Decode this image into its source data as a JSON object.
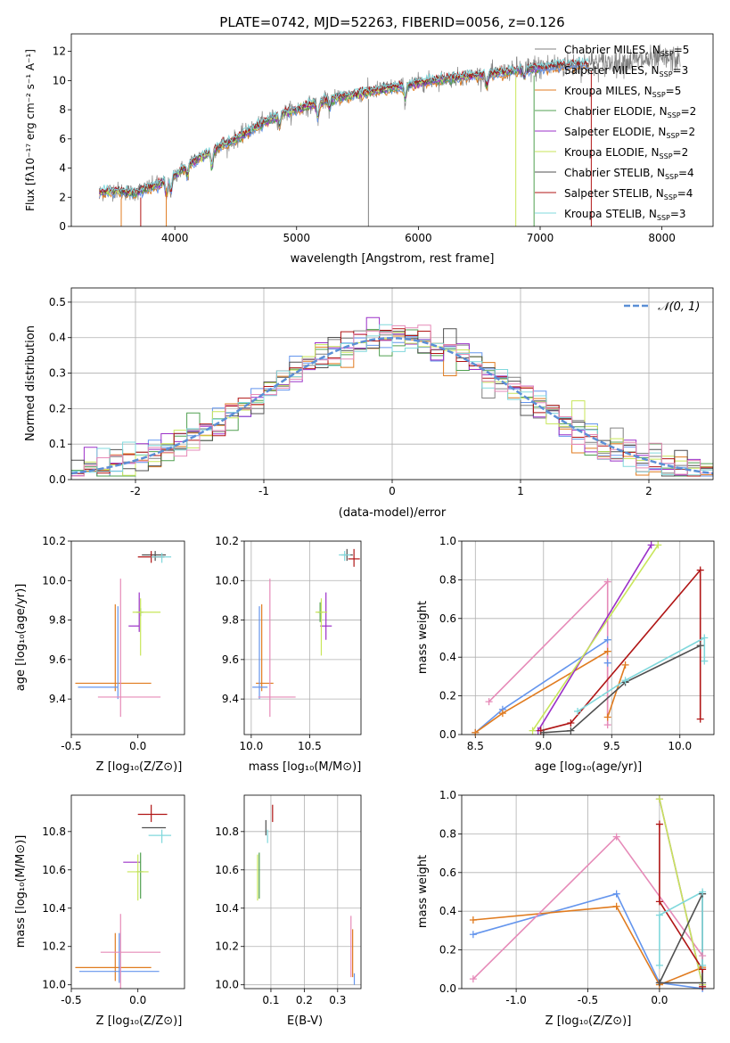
{
  "title": "PLATE=0742, MJD=52263, FIBERID=0056, z=0.126",
  "colors": {
    "chab_miles": "#808080",
    "salp_miles": "#6495ed",
    "krou_miles": "#e07b1f",
    "chab_elodie": "#50a050",
    "salp_elodie": "#9b30c8",
    "krou_elodie": "#c8e65a",
    "chab_stelib": "#505050",
    "salp_stelib": "#b01515",
    "krou_stelib": "#80d8dc",
    "pink": "#e68ab8",
    "gauss": "#5b8fd6",
    "grid": "#b0b0b0"
  },
  "legend_entries": {
    "e0": {
      "pre": "Chabrier MILES, N",
      "sub": "SSP",
      "post": "=5"
    },
    "e1": {
      "pre": "Salpeter MILES, N",
      "sub": "SSP",
      "post": "=3"
    },
    "e2": {
      "pre": "Kroupa MILES, N",
      "sub": "SSP",
      "post": "=5"
    },
    "e3": {
      "pre": "Chabrier ELODIE, N",
      "sub": "SSP",
      "post": "=2"
    },
    "e4": {
      "pre": "Salpeter ELODIE, N",
      "sub": "SSP",
      "post": "=2"
    },
    "e5": {
      "pre": "Kroupa ELODIE, N",
      "sub": "SSP",
      "post": "=2"
    },
    "e6": {
      "pre": "Chabrier STELIB, N",
      "sub": "SSP",
      "post": "=4"
    },
    "e7": {
      "pre": "Salpeter STELIB, N",
      "sub": "SSP",
      "post": "=4"
    },
    "e8": {
      "pre": "Kroupa STELIB, N",
      "sub": "SSP",
      "post": "=3"
    }
  },
  "gauss_legend": "𝒩(0, 1)",
  "labels": {
    "spec_x": "wavelength [Angstrom, rest frame]",
    "spec_y": "Flux [fλ10⁻¹⁷ erg cm⁻² s⁻¹ A⁻¹]",
    "hist_x": "(data-model)/error",
    "hist_y": "Normed distribution",
    "z_x": "Z [log₁₀(Z/Z⊙)]",
    "age_y": "age  [log₁₀(age/yr)]",
    "mass_x": "mass [log₁₀(M/M⊙)]",
    "mw_y": "mass weight",
    "age_x": "age  [log₁₀(age/yr)]",
    "mass_y": "mass [log₁₀(M/M⊙)]",
    "ebv_x": "E(B-V)"
  },
  "chart_data": [
    {
      "type": "line",
      "title": "PLATE=0742, MJD=52263, FIBERID=0056, z=0.126",
      "xlabel": "wavelength [Angstrom, rest frame]",
      "ylabel": "Flux [fλ10^-17 erg cm^-2 s^-1 A^-1]",
      "xlim": [
        3150,
        8420
      ],
      "ylim": [
        0,
        13.2
      ],
      "xticks": [
        4000,
        5000,
        6000,
        7000,
        8000
      ],
      "yticks": [
        0,
        2,
        4,
        6,
        8,
        10,
        12
      ],
      "legend": "top-right",
      "continuum": {
        "x": [
          3380,
          3500,
          3650,
          3800,
          3950,
          4100,
          4300,
          4500,
          4700,
          4900,
          5100,
          5300,
          5500,
          5700,
          5900,
          6100,
          6300,
          6500,
          6700,
          6900,
          7100,
          7300,
          7500,
          7700,
          7900,
          8150
        ],
        "y": [
          2.3,
          2.5,
          2.3,
          2.7,
          3.2,
          4.2,
          5.2,
          6.0,
          7.0,
          7.8,
          8.3,
          8.8,
          9.1,
          9.4,
          9.7,
          10.0,
          10.2,
          10.4,
          10.6,
          10.8,
          11.0,
          11.1,
          11.2,
          11.3,
          11.4,
          11.5
        ]
      }
    },
    {
      "type": "bar",
      "xlabel": "(data-model)/error",
      "ylabel": "Normed distribution",
      "xlim": [
        -2.5,
        2.5
      ],
      "ylim": [
        0,
        0.54
      ],
      "xticks": [
        -2,
        -1,
        0,
        1,
        2
      ],
      "yticks": [
        0.0,
        0.1,
        0.2,
        0.3,
        0.4,
        0.5
      ],
      "bin_width": 0.1,
      "legend": "top-right"
    },
    {
      "type": "scatter",
      "xlabel": "Z [log10(Z/Zsun)]",
      "ylabel": "age [log10(age/yr)]",
      "xlim": [
        -0.5,
        0.35
      ],
      "ylim": [
        9.22,
        10.2
      ],
      "xticks": [
        -0.5,
        0.0,
        0.5
      ],
      "yticks": [
        9.4,
        9.6,
        9.8,
        10.0,
        10.2
      ],
      "points": [
        {
          "c": "chab_stelib",
          "x": 0.13,
          "y": 10.13,
          "xe": [
            0.1,
            0.08
          ],
          "ye": [
            0.03,
            0.02
          ]
        },
        {
          "c": "salp_stelib",
          "x": 0.1,
          "y": 10.12,
          "xe": [
            0.1,
            0.1
          ],
          "ye": [
            0.03,
            0.03
          ]
        },
        {
          "c": "krou_stelib",
          "x": 0.18,
          "y": 10.12,
          "xe": [
            0.08,
            0.07
          ],
          "ye": [
            0.03,
            0.02
          ]
        },
        {
          "c": "salp_elodie",
          "x": 0.01,
          "y": 9.77,
          "xe": [
            0.08,
            0.0
          ],
          "ye": [
            0.03,
            0.17
          ]
        },
        {
          "c": "chab_elodie",
          "x": 0.02,
          "y": 9.84,
          "xe": [
            0.03,
            0.02
          ],
          "ye": [
            0.02,
            0.02
          ]
        },
        {
          "c": "krou_elodie",
          "x": 0.02,
          "y": 9.84,
          "xe": [
            0.06,
            0.15
          ],
          "ye": [
            0.22,
            0.07
          ]
        },
        {
          "c": "krou_miles",
          "x": -0.17,
          "y": 9.48,
          "xe": [
            0.3,
            0.27
          ],
          "ye": [
            0.04,
            0.4
          ]
        },
        {
          "c": "salp_miles",
          "x": -0.15,
          "y": 9.46,
          "xe": [
            0.3,
            0.0
          ],
          "ye": [
            0.06,
            0.41
          ]
        },
        {
          "c": "pink",
          "x": -0.13,
          "y": 9.41,
          "xe": [
            0.17,
            0.3
          ],
          "ye": [
            0.1,
            0.6
          ]
        }
      ]
    },
    {
      "type": "scatter",
      "xlabel": "mass [log10(M/Msun)]",
      "ylabel": "",
      "xlim": [
        9.94,
        10.94
      ],
      "ylim": [
        9.22,
        10.2
      ],
      "xticks": [
        10.0,
        10.5
      ],
      "yticks": [
        9.4,
        9.6,
        9.8,
        10.0,
        10.2
      ],
      "points": [
        {
          "c": "chab_stelib",
          "x": 10.82,
          "y": 10.13,
          "xe": [
            0.05,
            0.05
          ],
          "ye": [
            0.03,
            0.03
          ]
        },
        {
          "c": "salp_stelib",
          "x": 10.88,
          "y": 10.11,
          "xe": [
            0.05,
            0.05
          ],
          "ye": [
            0.04,
            0.05
          ]
        },
        {
          "c": "krou_stelib",
          "x": 10.8,
          "y": 10.13,
          "xe": [
            0.05,
            0.05
          ],
          "ye": [
            0.03,
            0.02
          ]
        },
        {
          "c": "salp_elodie",
          "x": 10.64,
          "y": 9.77,
          "xe": [
            0.05,
            0.05
          ],
          "ye": [
            0.07,
            0.17
          ]
        },
        {
          "c": "chab_elodie",
          "x": 10.59,
          "y": 9.84,
          "xe": [
            0.02,
            0.02
          ],
          "ye": [
            0.05,
            0.05
          ]
        },
        {
          "c": "krou_elodie",
          "x": 10.6,
          "y": 9.84,
          "xe": [
            0.05,
            0.05
          ],
          "ye": [
            0.22,
            0.07
          ]
        },
        {
          "c": "krou_miles",
          "x": 10.09,
          "y": 9.48,
          "xe": [
            0.05,
            0.1
          ],
          "ye": [
            0.04,
            0.4
          ]
        },
        {
          "c": "salp_miles",
          "x": 10.07,
          "y": 9.46,
          "xe": [
            0.06,
            0.07
          ],
          "ye": [
            0.06,
            0.41
          ]
        },
        {
          "c": "pink",
          "x": 10.16,
          "y": 9.41,
          "xe": [
            0.1,
            0.22
          ],
          "ye": [
            0.1,
            0.6
          ]
        }
      ]
    },
    {
      "type": "line",
      "xlabel": "age [log10(age/yr)]",
      "ylabel": "mass weight",
      "xlim": [
        8.4,
        10.25
      ],
      "ylim": [
        0,
        1
      ],
      "xticks": [
        8.5,
        9.0,
        9.5,
        10.0
      ],
      "yticks": [
        0.0,
        0.2,
        0.4,
        0.6,
        0.8,
        1.0
      ],
      "series": [
        {
          "c": "salp_miles",
          "x": [
            8.5,
            8.7,
            9.47,
            9.47
          ],
          "y": [
            0.01,
            0.13,
            0.49,
            0.37
          ]
        },
        {
          "c": "krou_miles",
          "x": [
            8.5,
            8.7,
            9.47,
            9.47,
            9.6
          ],
          "y": [
            0.01,
            0.11,
            0.43,
            0.09,
            0.36
          ]
        },
        {
          "c": "pink",
          "x": [
            8.6,
            9.47,
            9.47
          ],
          "y": [
            0.17,
            0.79,
            0.05
          ]
        },
        {
          "c": "salp_elodie",
          "x": [
            8.96,
            9.79
          ],
          "y": [
            0.02,
            0.98
          ]
        },
        {
          "c": "krou_elodie",
          "x": [
            8.92,
            9.84
          ],
          "y": [
            0.02,
            0.98
          ]
        },
        {
          "c": "salp_stelib",
          "x": [
            8.98,
            9.2,
            10.15,
            10.15
          ],
          "y": [
            0.02,
            0.06,
            0.85,
            0.08
          ]
        },
        {
          "c": "chab_stelib",
          "x": [
            9.0,
            9.2,
            9.6,
            10.15
          ],
          "y": [
            0.01,
            0.02,
            0.27,
            0.46
          ]
        },
        {
          "c": "krou_stelib",
          "x": [
            9.25,
            9.6,
            10.18,
            10.18
          ],
          "y": [
            0.12,
            0.28,
            0.5,
            0.38
          ]
        }
      ]
    },
    {
      "type": "scatter",
      "xlabel": "Z [log10(Z/Zsun)]",
      "ylabel": "mass [log10(M/Msun)]",
      "xlim": [
        -0.5,
        0.35
      ],
      "ylim": [
        9.98,
        10.99
      ],
      "xticks": [
        -0.5,
        0.0,
        0.5
      ],
      "yticks": [
        10.0,
        10.2,
        10.4,
        10.6,
        10.8
      ],
      "points": [
        {
          "c": "chab_stelib",
          "x": 0.13,
          "y": 10.82,
          "xe": [
            0.1,
            0.08
          ],
          "ye": [
            0.0,
            0.0
          ]
        },
        {
          "c": "salp_stelib",
          "x": 0.1,
          "y": 10.89,
          "xe": [
            0.1,
            0.12
          ],
          "ye": [
            0.04,
            0.05
          ]
        },
        {
          "c": "krou_stelib",
          "x": 0.18,
          "y": 10.78,
          "xe": [
            0.1,
            0.07
          ],
          "ye": [
            0.04,
            0.03
          ]
        },
        {
          "c": "salp_elodie",
          "x": -0.03,
          "y": 10.64,
          "xe": [
            0.08,
            0.05
          ],
          "ye": [
            0.0,
            0.0
          ]
        },
        {
          "c": "chab_elodie",
          "x": 0.02,
          "y": 10.59,
          "xe": [
            0.03,
            0.02
          ],
          "ye": [
            0.14,
            0.1
          ]
        },
        {
          "c": "krou_elodie",
          "x": 0.0,
          "y": 10.59,
          "xe": [
            0.08,
            0.08
          ],
          "ye": [
            0.15,
            0.09
          ]
        },
        {
          "c": "krou_miles",
          "x": -0.17,
          "y": 10.09,
          "xe": [
            0.3,
            0.27
          ],
          "ye": [
            0.07,
            0.18
          ]
        },
        {
          "c": "salp_miles",
          "x": -0.14,
          "y": 10.07,
          "xe": [
            0.3,
            0.3
          ],
          "ye": [
            0.06,
            0.2
          ]
        },
        {
          "c": "pink",
          "x": -0.13,
          "y": 10.17,
          "xe": [
            0.15,
            0.3
          ],
          "ye": [
            0.2,
            0.2
          ]
        }
      ]
    },
    {
      "type": "scatter",
      "xlabel": "E(B-V)",
      "ylabel": "",
      "xlim": [
        0.02,
        0.37
      ],
      "ylim": [
        9.98,
        10.99
      ],
      "xticks": [
        0.1,
        0.2,
        0.3
      ],
      "yticks": [
        10.0,
        10.2,
        10.4,
        10.6,
        10.8
      ],
      "points": [
        {
          "c": "salp_stelib",
          "x": 0.105,
          "y": 10.89,
          "ye": [
            0.04,
            0.05
          ]
        },
        {
          "c": "chab_stelib",
          "x": 0.085,
          "y": 10.82,
          "ye": [
            0.04,
            0.04
          ]
        },
        {
          "c": "krou_stelib",
          "x": 0.09,
          "y": 10.78,
          "ye": [
            0.04,
            0.03
          ]
        },
        {
          "c": "salp_elodie",
          "x": 0.065,
          "y": 10.64,
          "ye": [
            0.0,
            0.0
          ]
        },
        {
          "c": "chab_elodie",
          "x": 0.065,
          "y": 10.59,
          "ye": [
            0.14,
            0.1
          ]
        },
        {
          "c": "krou_elodie",
          "x": 0.06,
          "y": 10.59,
          "ye": [
            0.15,
            0.09
          ]
        },
        {
          "c": "pink",
          "x": 0.34,
          "y": 10.2,
          "ye": [
            0.16,
            0.16
          ]
        },
        {
          "c": "krou_miles",
          "x": 0.345,
          "y": 10.12,
          "ye": [
            0.08,
            0.17
          ]
        },
        {
          "c": "salp_miles",
          "x": 0.35,
          "y": 10.03,
          "ye": [
            0.03,
            0.03
          ]
        }
      ]
    },
    {
      "type": "line",
      "xlabel": "Z [log10(Z/Zsun)]",
      "ylabel": "mass weight",
      "xlim": [
        -1.38,
        0.38
      ],
      "ylim": [
        0,
        1
      ],
      "xticks": [
        -1.0,
        -0.5,
        0.0
      ],
      "yticks": [
        0.0,
        0.2,
        0.4,
        0.6,
        0.8,
        1.0
      ],
      "series": [
        {
          "c": "salp_miles",
          "x": [
            -1.3,
            -0.3,
            0.0,
            0.3
          ],
          "y": [
            0.28,
            0.49,
            0.03,
            0.0
          ]
        },
        {
          "c": "krou_miles",
          "x": [
            -1.3,
            -0.3,
            0.0,
            0.3
          ],
          "y": [
            0.355,
            0.425,
            0.02,
            0.11
          ]
        },
        {
          "c": "pink",
          "x": [
            -1.3,
            -0.3,
            0.3
          ],
          "y": [
            0.05,
            0.785,
            0.17
          ]
        },
        {
          "c": "salp_elodie",
          "x": [
            0.0,
            0.3
          ],
          "y": [
            0.98,
            0.02
          ]
        },
        {
          "c": "krou_elodie",
          "x": [
            0.0,
            0.3
          ],
          "y": [
            0.98,
            0.02
          ]
        },
        {
          "c": "salp_stelib",
          "x": [
            0.0,
            0.0,
            0.3,
            0.3
          ],
          "y": [
            0.85,
            0.45,
            0.1,
            0.01
          ]
        },
        {
          "c": "chab_stelib",
          "x": [
            0.0,
            0.3,
            0.3,
            0.0
          ],
          "y": [
            0.03,
            0.03,
            0.49,
            0.03
          ]
        },
        {
          "c": "krou_stelib",
          "x": [
            0.0,
            0.0,
            0.3,
            0.3
          ],
          "y": [
            0.12,
            0.38,
            0.5,
            0.12
          ]
        }
      ]
    }
  ]
}
